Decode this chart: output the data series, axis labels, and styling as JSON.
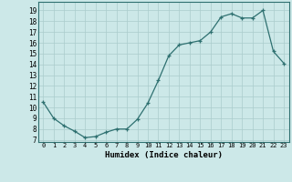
{
  "x_values": [
    0,
    1,
    2,
    3,
    4,
    5,
    6,
    7,
    8,
    9,
    10,
    11,
    12,
    13,
    14,
    15,
    16,
    17,
    18,
    19,
    20,
    21,
    22,
    23
  ],
  "y_values": [
    10.5,
    9.0,
    8.3,
    7.8,
    7.2,
    7.3,
    7.7,
    8.0,
    8.0,
    8.9,
    10.4,
    12.5,
    14.8,
    15.8,
    16.0,
    16.2,
    17.0,
    18.4,
    18.7,
    18.3,
    18.3,
    19.0,
    15.2,
    14.1
  ],
  "xlabel": "Humidex (Indice chaleur)",
  "xlim": [
    -0.5,
    23.5
  ],
  "ylim": [
    6.8,
    19.8
  ],
  "yticks": [
    7,
    8,
    9,
    10,
    11,
    12,
    13,
    14,
    15,
    16,
    17,
    18,
    19
  ],
  "xticks": [
    0,
    1,
    2,
    3,
    4,
    5,
    6,
    7,
    8,
    9,
    10,
    11,
    12,
    13,
    14,
    15,
    16,
    17,
    18,
    19,
    20,
    21,
    22,
    23
  ],
  "line_color": "#2e7070",
  "bg_color": "#cce8e8",
  "grid_color": "#aacccc",
  "spine_color": "#2e7070"
}
